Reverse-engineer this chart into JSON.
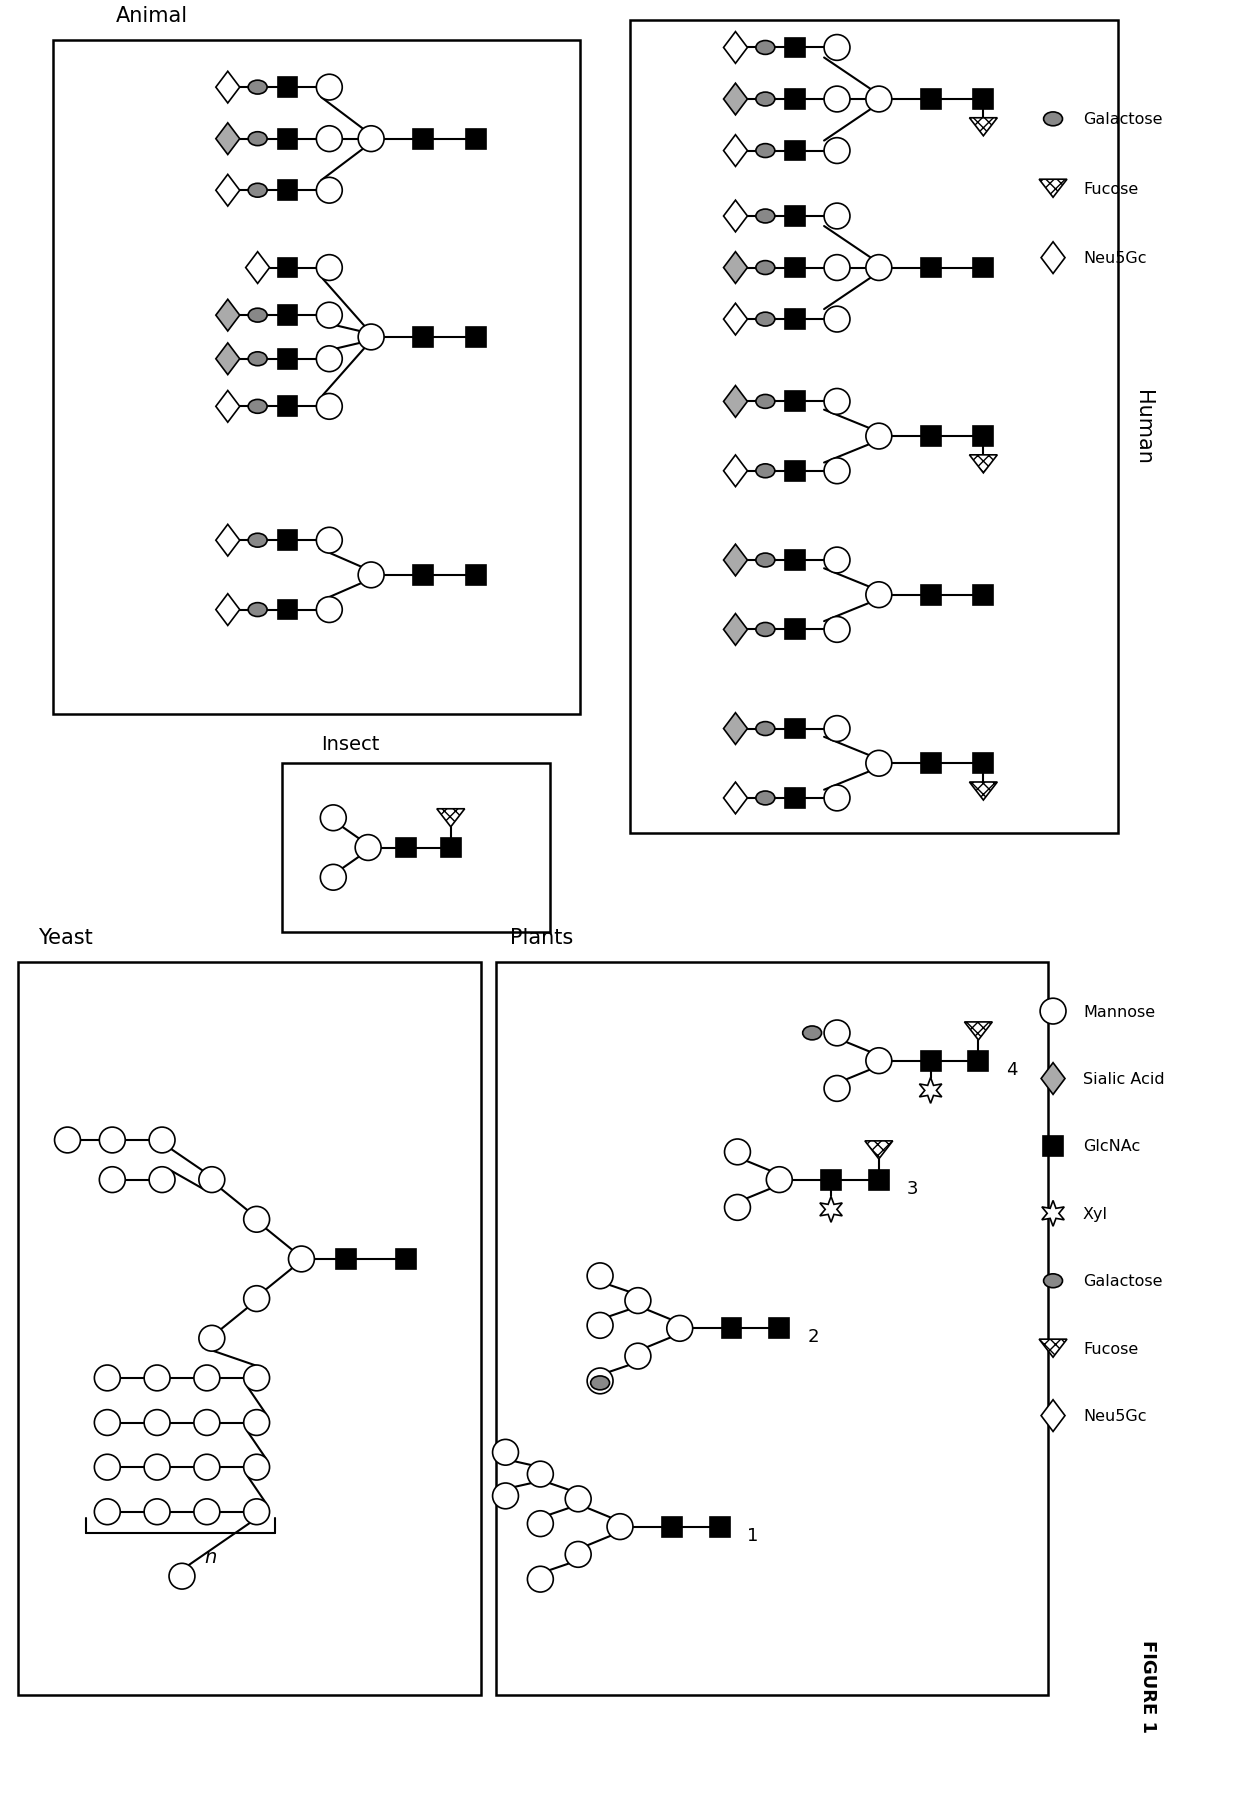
{
  "fig_width": 12.4,
  "fig_height": 18.08,
  "bg_color": "#ffffff",
  "labels": {
    "yeast": "Yeast",
    "animal": "Animal",
    "insect": "Insect",
    "human": "Human",
    "plants": "Plants",
    "figure": "FIGURE 1",
    "n_label": "n",
    "legend_mannose": "Mannose",
    "legend_sialic": "Sialic Acid",
    "legend_glcnac": "GlcNAc",
    "legend_xyl": "Xyl",
    "legend_galactose": "Galactose",
    "legend_fucose": "Fucose",
    "legend_neu5gc": "Neu5Gc"
  }
}
